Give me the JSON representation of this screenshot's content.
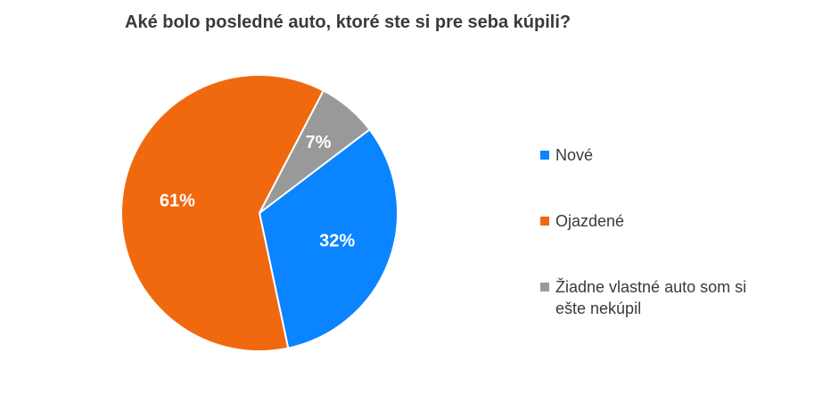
{
  "chart_data": {
    "type": "pie",
    "title": "Aké bolo posledné auto, ktoré ste si pre seba kúpili?",
    "categories": [
      "Nové",
      "Ojazdené",
      "Žiadne vlastné auto som si ešte nekúpil"
    ],
    "values": [
      32,
      61,
      7
    ],
    "value_labels": [
      "32%",
      "61%",
      "7%"
    ],
    "colors": [
      "#0a84ff",
      "#f0690f",
      "#999999"
    ]
  }
}
